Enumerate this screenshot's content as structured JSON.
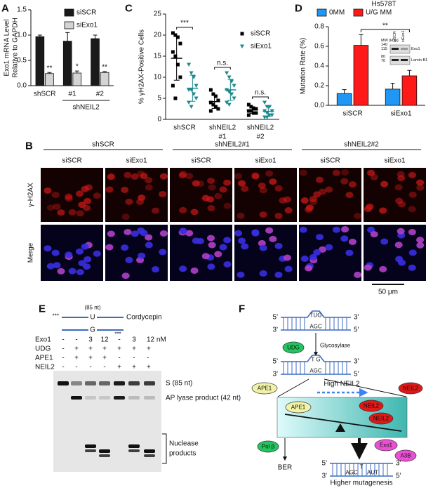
{
  "chart_data": [
    {
      "type": "bar",
      "panel": "A",
      "categories": [
        "shSCR",
        "#1",
        "#2"
      ],
      "group_label": "shNEIL2",
      "ylabel": [
        "Exo1 mRNA Level",
        "Relative to GAPDH"
      ],
      "ylim": [
        0,
        1.5
      ],
      "yticks": [
        {
          "value": 0,
          "label": "0.0"
        },
        0.5,
        {
          "value": 1,
          "label": "1.0"
        },
        1.5
      ],
      "series": [
        {
          "name": "siSCR",
          "color": "#1a1a1a",
          "values": [
            0.97,
            0.88,
            0.93
          ],
          "errors": [
            0.03,
            0.17,
            0.07
          ]
        },
        {
          "name": "siExo1",
          "color": "#d4d4d4",
          "values": [
            0.24,
            0.25,
            0.26
          ],
          "errors": [
            0.02,
            0.04,
            0.02
          ]
        }
      ],
      "annotations": [
        "**",
        "*",
        "**"
      ]
    },
    {
      "type": "dot",
      "panel": "C",
      "categories": [
        "shSCR",
        "shNEIL2",
        "shNEIL2"
      ],
      "category_sublabels": [
        null,
        "#1",
        "#2"
      ],
      "ylabel": [
        "% γH2AX-Positive Cells"
      ],
      "ylim": [
        0,
        25
      ],
      "yticks": [
        0,
        5,
        10,
        15,
        20,
        25
      ],
      "series": [
        {
          "name": "siSCR",
          "color": "#000000",
          "marker": "square",
          "values": [
            [
              20.5,
              20,
              19.5,
              18,
              16,
              15,
              13,
              10,
              8,
              5
            ],
            [
              7,
              6,
              5.5,
              4.5,
              4,
              3.5,
              3,
              2.5,
              2
            ],
            [
              3.5,
              3,
              2.5,
              2.5,
              2,
              2,
              1.5,
              1.5,
              1
            ]
          ],
          "mean": [
            14.5,
            4.2,
            2.2
          ],
          "sd": [
            5.2,
            1.6,
            0.8
          ]
        },
        {
          "name": "siExo1",
          "color": "#1b8a8c",
          "marker": "triangle",
          "values": [
            [
              13,
              11,
              10,
              8,
              7,
              7,
              6,
              5,
              4,
              3
            ],
            [
              11,
              10,
              9,
              8,
              7,
              6.5,
              6,
              5,
              4,
              3.5
            ],
            [
              4,
              3,
              3,
              2,
              2,
              1.5,
              1,
              1,
              0.5,
              0.5
            ]
          ],
          "mean": [
            7.4,
            7,
            1.9
          ],
          "sd": [
            3.1,
            2.5,
            1.2
          ]
        }
      ],
      "annotations": [
        "***",
        "n.s.",
        "n.s."
      ]
    },
    {
      "type": "bar",
      "panel": "D",
      "title": "Hs578T",
      "categories": [
        "siSCR",
        "siExo1"
      ],
      "ylabel": [
        "Mutation Rate (%)"
      ],
      "ylim": [
        0,
        0.8
      ],
      "yticks": [
        {
          "value": 0,
          "label": "0.0"
        },
        0.2,
        0.4,
        0.6,
        0.8
      ],
      "series": [
        {
          "name": "0MM",
          "color": "#2196f3",
          "values": [
            0.12,
            0.165
          ],
          "errors": [
            0.04,
            0.06
          ]
        },
        {
          "name": "U/G MM",
          "color": "#ff1a1a",
          "values": [
            0.61,
            0.3
          ],
          "errors": [
            0.11,
            0.055
          ]
        }
      ],
      "annotations": [
        "**"
      ],
      "inset": {
        "mw_label": "MW (kDa)",
        "markers": [
          "140",
          "115",
          "80",
          "70"
        ],
        "lanes": [
          "siSCR",
          "siExo1"
        ],
        "bands": [
          "Exo1",
          "Lamin B1"
        ]
      }
    }
  ],
  "microscopy": {
    "panel": "B",
    "groups": [
      "shSCR",
      "shNEIL2#1",
      "shNEIL2#2"
    ],
    "columns": [
      "siSCR",
      "siExo1",
      "siSCR",
      "siExo1",
      "siSCR",
      "siExo1"
    ],
    "rows": [
      "γ-H2AX",
      "Merge"
    ],
    "scale_bar": "50 μm"
  },
  "gel": {
    "panel": "E",
    "substrate": {
      "length": "(85 nt)",
      "top_mark": "***",
      "top_base": "U",
      "bottom_base": "G",
      "label": "Cordycepin",
      "bottom_mark": "***"
    },
    "conditions": [
      {
        "label": "Exo1",
        "cells": [
          "-",
          "-",
          "3",
          "12",
          "-",
          "3",
          "12 nM"
        ]
      },
      {
        "label": "UDG",
        "cells": [
          "-",
          "+",
          "+",
          "+",
          "+",
          "+",
          "+"
        ]
      },
      {
        "label": "APE1",
        "cells": [
          "-",
          "+",
          "+",
          "+",
          "-",
          "-",
          "-"
        ]
      },
      {
        "label": "NEIL2",
        "cells": [
          "-",
          "-",
          "-",
          "-",
          "+",
          "+",
          "+"
        ]
      }
    ],
    "bands": [
      "S (85 nt)",
      "AP lyase product (42 nt)"
    ],
    "nuclease_label": [
      "Nuclease",
      "products"
    ]
  },
  "model": {
    "panel": "F",
    "dna": [
      {
        "ends": [
          "5'",
          "3'",
          "3'",
          "5'"
        ],
        "top": "TUG",
        "bottom": "AGC"
      },
      {
        "ends": [
          "5'",
          "3'",
          "3'",
          "5'"
        ],
        "top": "T G",
        "bottom": "AGC"
      },
      {
        "ends": [
          "5'",
          "3'",
          "3'",
          "5'"
        ],
        "top": "T",
        "bottom": "AGC",
        "mutation": "AUT"
      }
    ],
    "udg": "UDG",
    "glycosylase": "Glycosylase",
    "ape1": "APE1",
    "neil2": "NEIL2",
    "high_neil2": "High NEIL2",
    "balance": [
      "APE1",
      "NEIL2",
      "NEIL2"
    ],
    "pol_beta": "Pol β",
    "ber": "BER",
    "exo1": "Exo1",
    "a3b": "A3B",
    "outcome": "Higher mutagenesis"
  }
}
